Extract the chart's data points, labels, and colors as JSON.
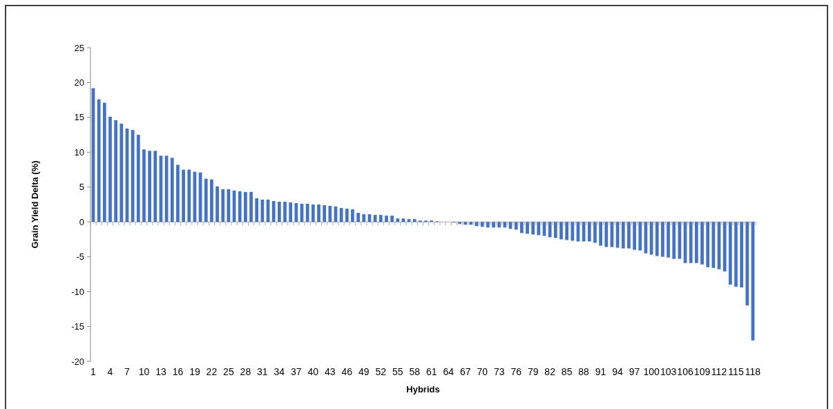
{
  "chart_data": {
    "type": "bar",
    "xlabel": "Hybrids",
    "ylabel": "Grain Yield Delta  (%)",
    "categories": [
      "1",
      null,
      null,
      "4",
      null,
      null,
      "7",
      null,
      null,
      "10",
      null,
      null,
      "13",
      null,
      null,
      "16",
      null,
      null,
      "19",
      null,
      null,
      "22",
      null,
      null,
      "25",
      null,
      null,
      "28",
      null,
      null,
      "31",
      null,
      null,
      "34",
      null,
      null,
      "37",
      null,
      null,
      "40",
      null,
      null,
      "43",
      null,
      null,
      "46",
      null,
      null,
      "49",
      null,
      null,
      "52",
      null,
      null,
      "55",
      null,
      null,
      "58",
      null,
      null,
      "61",
      null,
      null,
      "64",
      null,
      null,
      "67",
      null,
      null,
      "70",
      null,
      null,
      "73",
      null,
      null,
      "76",
      null,
      null,
      "79",
      null,
      null,
      "82",
      null,
      null,
      "85",
      null,
      null,
      "88",
      null,
      null,
      "91",
      null,
      null,
      "94",
      null,
      null,
      "97",
      null,
      null,
      "100",
      null,
      null,
      "103",
      null,
      null,
      "106",
      null,
      null,
      "109",
      null,
      null,
      "112",
      null,
      null,
      "115",
      null,
      null,
      "118"
    ],
    "values": [
      19.2,
      17.6,
      17.1,
      15.1,
      14.6,
      14.1,
      13.4,
      13.2,
      12.5,
      10.4,
      10.2,
      10.2,
      9.5,
      9.5,
      9.2,
      8.2,
      7.5,
      7.5,
      7.2,
      7.1,
      6.2,
      6.1,
      5.1,
      4.7,
      4.7,
      4.5,
      4.4,
      4.3,
      4.3,
      3.4,
      3.2,
      3.2,
      3.0,
      2.9,
      2.9,
      2.8,
      2.7,
      2.6,
      2.6,
      2.5,
      2.5,
      2.4,
      2.3,
      2.2,
      2.0,
      1.9,
      1.8,
      1.3,
      1.1,
      1.1,
      1.0,
      1.0,
      0.9,
      0.9,
      0.5,
      0.5,
      0.4,
      0.4,
      0.2,
      0.2,
      0.2,
      0.1,
      0,
      0,
      -0.1,
      -0.3,
      -0.4,
      -0.4,
      -0.6,
      -0.7,
      -0.8,
      -0.8,
      -0.8,
      -0.8,
      -1.0,
      -1.1,
      -1.6,
      -1.7,
      -1.8,
      -1.9,
      -2.0,
      -2.2,
      -2.3,
      -2.5,
      -2.6,
      -2.7,
      -2.8,
      -2.8,
      -2.8,
      -3.0,
      -3.4,
      -3.6,
      -3.6,
      -3.7,
      -3.8,
      -3.8,
      -4.0,
      -4.1,
      -4.5,
      -4.7,
      -4.9,
      -5.0,
      -5.1,
      -5.3,
      -5.3,
      -5.9,
      -5.9,
      -5.9,
      -6.1,
      -6.5,
      -6.6,
      -6.8,
      -7.1,
      -9.0,
      -9.3,
      -9.4,
      -12.0,
      -17.0
    ],
    "color": "#4472c4",
    "ylim": [
      -20,
      25
    ],
    "yticks": [
      -20,
      -15,
      -10,
      -5,
      0,
      5,
      10,
      15,
      20,
      25
    ]
  }
}
